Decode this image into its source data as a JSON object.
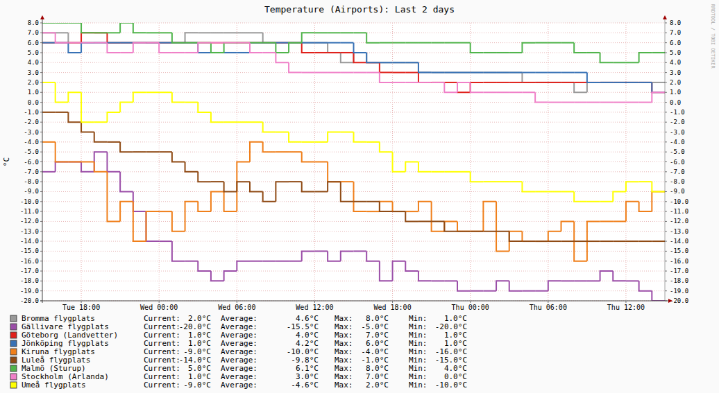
{
  "chart_data": {
    "type": "line",
    "title": "Temperature (Airports): Last 2 days",
    "y_label": "°C",
    "annotation": "RRDTOOL / TOBI OETIKER",
    "categories": [
      null,
      null,
      null,
      "Tue 18:00",
      null,
      null,
      null,
      null,
      null,
      "Wed 00:00",
      null,
      null,
      null,
      null,
      null,
      "Wed 06:00",
      null,
      null,
      null,
      null,
      null,
      "Wed 12:00",
      null,
      null,
      null,
      null,
      null,
      "Wed 18:00",
      null,
      null,
      null,
      null,
      null,
      "Thu 00:00",
      null,
      null,
      null,
      null,
      null,
      "Thu 06:00",
      null,
      null,
      null,
      null,
      null,
      "Thu 12:00",
      null,
      null
    ],
    "ylim": [
      -20,
      8
    ],
    "yticks": [
      {
        "value": 8,
        "label": "8.0"
      },
      {
        "value": 7,
        "label": "7.0"
      },
      {
        "value": 6,
        "label": "6.0"
      },
      {
        "value": 5,
        "label": "5.0"
      },
      {
        "value": 4,
        "label": "4.0"
      },
      {
        "value": 3,
        "label": "3.0"
      },
      {
        "value": 2,
        "label": "2.0"
      },
      {
        "value": 1,
        "label": "1.0"
      },
      {
        "value": 0,
        "label": "0.0"
      },
      {
        "value": -1,
        "label": "-1.0"
      },
      {
        "value": -2,
        "label": "-2.0"
      },
      {
        "value": -3,
        "label": "-3.0"
      },
      {
        "value": -4,
        "label": "-4.0"
      },
      {
        "value": -5,
        "label": "-5.0"
      },
      {
        "value": -6,
        "label": "-6.0"
      },
      {
        "value": -7,
        "label": "-7.0"
      },
      {
        "value": -8,
        "label": "-8.0"
      },
      {
        "value": -9,
        "label": "-9.0"
      },
      {
        "value": -10,
        "label": "-10.0"
      },
      {
        "value": -11,
        "label": "-11.0"
      },
      {
        "value": -12,
        "label": "-12.0"
      },
      {
        "value": -13,
        "label": "-13.0"
      },
      {
        "value": -14,
        "label": "-14.0"
      },
      {
        "value": -15,
        "label": "-15.0"
      },
      {
        "value": -16,
        "label": "-16.0"
      },
      {
        "value": -17,
        "label": "-17.0"
      },
      {
        "value": -18,
        "label": "-18.0"
      },
      {
        "value": -19,
        "label": "-19.0"
      },
      {
        "value": -20,
        "label": "-20.0"
      }
    ],
    "grid": true,
    "legend": "bottom",
    "line_style": "step",
    "legend_columns": [
      "Current:",
      "Average:",
      "Max:",
      "Min:"
    ],
    "series": [
      {
        "name": "Bromma flygplats",
        "color": "#999999",
        "stats": [
          "2.0°C",
          "4.6°C",
          "8.0°C",
          "1.0°C"
        ],
        "values": [
          7,
          7,
          6,
          6,
          6,
          6,
          6,
          6,
          6,
          6,
          6,
          7,
          7,
          7,
          7,
          7,
          7,
          6,
          6,
          6,
          6,
          6,
          5,
          4,
          5,
          4,
          4,
          4,
          4,
          3,
          3,
          3,
          3,
          3,
          3,
          3,
          3,
          2,
          2,
          2,
          2,
          1,
          2,
          2,
          2,
          2,
          2,
          2
        ]
      },
      {
        "name": "Gällivare flygplats",
        "color": "#9b4ea8",
        "stats": [
          "-20.0°C",
          "-15.5°C",
          "-5.0°C",
          "-20.0°C"
        ],
        "values": [
          -7,
          -6,
          -6,
          -7,
          -5,
          -7,
          -9,
          -11,
          -14,
          -14,
          -16,
          -16,
          -17,
          -18,
          -17,
          -16,
          -16,
          -16,
          -16,
          -16,
          -15,
          -15,
          -16,
          -15,
          -15,
          -16,
          -18,
          -16,
          -17,
          -18,
          -18,
          -18,
          -19,
          -19,
          -19,
          -18,
          -19,
          -19,
          -19,
          -18,
          -18,
          -18,
          -18,
          -17,
          -18,
          -18,
          -19,
          -20
        ]
      },
      {
        "name": "Göteborg (Landvetter)",
        "color": "#e0201b",
        "stats": [
          "1.0°C",
          "4.0°C",
          "7.0°C",
          "1.0°C"
        ],
        "values": [
          6,
          6,
          6,
          7,
          7,
          6,
          6,
          6,
          6,
          6,
          6,
          6,
          6,
          6,
          6,
          6,
          6,
          6,
          6,
          6,
          5,
          5,
          5,
          5,
          4,
          4,
          3,
          3,
          3,
          2,
          2,
          2,
          1,
          2,
          2,
          2,
          2,
          2,
          2,
          2,
          2,
          2,
          2,
          2,
          2,
          2,
          2,
          1
        ]
      },
      {
        "name": "Jönköping flygplats",
        "color": "#3771b5",
        "stats": [
          "1.0°C",
          "4.2°C",
          "6.0°C",
          "1.0°C"
        ],
        "values": [
          6,
          6,
          5,
          6,
          6,
          6,
          6,
          6,
          6,
          6,
          6,
          6,
          5,
          5,
          5,
          5,
          6,
          6,
          6,
          6,
          6,
          6,
          6,
          6,
          5,
          4,
          4,
          4,
          4,
          3,
          3,
          3,
          3,
          3,
          3,
          3,
          3,
          3,
          3,
          3,
          3,
          3,
          2,
          2,
          2,
          2,
          2,
          1
        ]
      },
      {
        "name": "Kiruna flygplats",
        "color": "#f07f1a",
        "stats": [
          "-9.0°C",
          "-10.0°C",
          "-4.0°C",
          "-16.0°C"
        ],
        "values": [
          -4,
          -6,
          -6,
          -6,
          -7,
          -12,
          -10,
          -14,
          -11,
          -11,
          -13,
          -10,
          -11,
          -9,
          -11,
          -6,
          -4,
          -5,
          -5,
          -5,
          -6,
          -6,
          -8,
          -8,
          -11,
          -11,
          -10,
          -11,
          -11,
          -10,
          -13,
          -12,
          -13,
          -13,
          -10,
          -15,
          -13,
          -14,
          -14,
          -13,
          -12,
          -16,
          -12,
          -12,
          -12,
          -10,
          -11,
          -9
        ]
      },
      {
        "name": "Luleå flygplats",
        "color": "#8f4a14",
        "stats": [
          "-14.0°C",
          "-9.8°C",
          "-1.0°C",
          "-15.0°C"
        ],
        "values": [
          -1,
          -1,
          -2,
          -3,
          -4,
          -4,
          -5,
          -5,
          -5,
          -5,
          -6,
          -7,
          -8,
          -8,
          -9,
          -8,
          -9,
          -10,
          -8,
          -8,
          -9,
          -9,
          -8,
          -10,
          -10,
          -10,
          -11,
          -11,
          -12,
          -12,
          -12,
          -13,
          -13,
          -13,
          -13,
          -13,
          -14,
          -14,
          -14,
          -14,
          -14,
          -14,
          -14,
          -14,
          -14,
          -14,
          -14,
          -14
        ]
      },
      {
        "name": "Malmö (Sturup)",
        "color": "#50b44b",
        "stats": [
          "5.0°C",
          "6.1°C",
          "8.0°C",
          "4.0°C"
        ],
        "values": [
          8,
          8,
          8,
          7,
          7,
          7,
          8,
          7,
          7,
          7,
          6,
          6,
          6,
          5,
          6,
          6,
          6,
          6,
          5,
          6,
          7,
          7,
          7,
          7,
          7,
          6,
          6,
          6,
          6,
          6,
          6,
          6,
          6,
          5,
          5,
          5,
          5,
          6,
          6,
          6,
          6,
          5,
          5,
          4,
          4,
          4,
          5,
          5
        ]
      },
      {
        "name": "Stockholm (Arlanda)",
        "color": "#f080c8",
        "stats": [
          "1.0°C",
          "3.0°C",
          "7.0°C",
          "0.0°C"
        ],
        "values": [
          7,
          6,
          6,
          6,
          6,
          5,
          5,
          6,
          6,
          5,
          5,
          5,
          6,
          6,
          6,
          6,
          5,
          5,
          4,
          3,
          3,
          3,
          3,
          3,
          3,
          3,
          2,
          2,
          2,
          2,
          2,
          1,
          2,
          1,
          1,
          1,
          1,
          1,
          0,
          0,
          0,
          0,
          0,
          0,
          0,
          0,
          0,
          1
        ]
      },
      {
        "name": "Umeå flygplats",
        "color": "#ffff00",
        "stats": [
          "-9.0°C",
          "-4.6°C",
          "2.0°C",
          "-10.0°C"
        ],
        "values": [
          2,
          0,
          1,
          -2,
          -2,
          -1,
          0,
          1,
          1,
          1,
          0,
          0,
          -1,
          -2,
          -2,
          -2,
          -2,
          -3,
          -3,
          -4,
          -4,
          -4,
          -3,
          -3,
          -4,
          -4,
          -5,
          -7,
          -6,
          -7,
          -7,
          -7,
          -7,
          -8,
          -8,
          -8,
          -8,
          -9,
          -9,
          -9,
          -9,
          -10,
          -10,
          -10,
          -9,
          -8,
          -8,
          -9
        ]
      }
    ]
  }
}
